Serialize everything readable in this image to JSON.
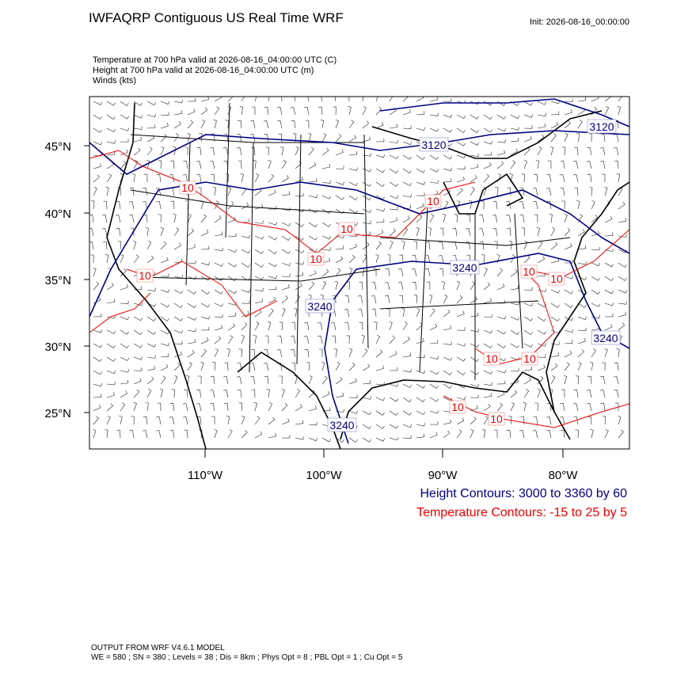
{
  "header": {
    "title": "IWFAQRP Contiguous US Real Time WRF",
    "init": "Init: 2026-08-16_00:00:00",
    "subtitle": [
      "Temperature at 700 hPa valid at 2026-08-16_04:00:00 UTC   (C)",
      "Height at 700 hPa valid at 2026-08-16_04:00:00 UTC   (m)",
      "Winds   (kts)"
    ]
  },
  "map": {
    "lat_labels": [
      "45°N",
      "40°N",
      "35°N",
      "30°N",
      "25°N"
    ],
    "lon_labels": [
      "110°W",
      "100°W",
      "90°W",
      "80°W"
    ],
    "height_labels": [
      "3120",
      "3120",
      "3240",
      "3240",
      "3240",
      "3240"
    ],
    "temperature_labels": [
      "10",
      "10",
      "10",
      "10",
      "10",
      "10",
      "10",
      "10",
      "10",
      "10",
      "10"
    ]
  },
  "legend": {
    "height": "Height Contours: 3000 to 3360 by 60",
    "temperature": "Temperature Contours: -15 to 25 by 5"
  },
  "footer": [
    "OUTPUT FROM WRF V4.6.1 MODEL",
    "WE = 580 ; SN = 380 ; Levels = 38 ; Dis = 8km ; Phys Opt = 8 ; PBL Opt = 1 ; Cu Opt = 5"
  ]
}
